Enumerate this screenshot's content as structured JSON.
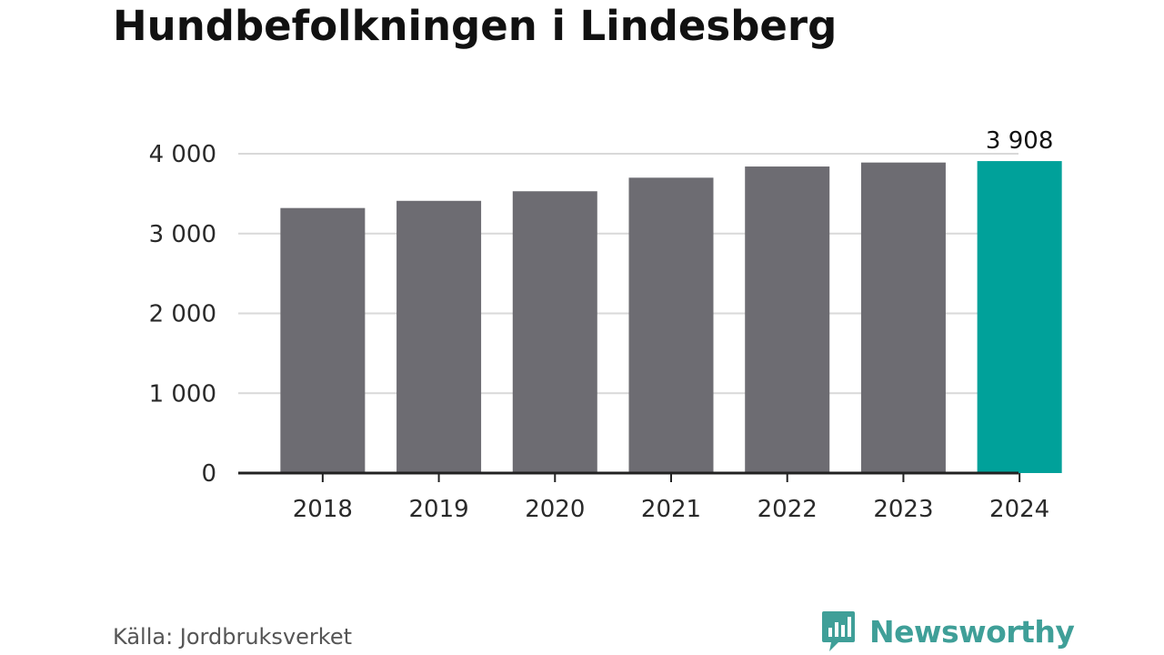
{
  "title": "Hundbefolkningen i Lindesberg",
  "source": "Källa: Jordbruksverket",
  "logo": {
    "text": "Newsworthy",
    "icon": "bar-chart-speech-bubble-icon",
    "color": "#3f9f98"
  },
  "colors": {
    "bar": "#6d6c72",
    "highlight": "#00a19a",
    "grid": "#d9d9d9",
    "axis": "#222222"
  },
  "chart_data": {
    "type": "bar",
    "categories": [
      "2018",
      "2019",
      "2020",
      "2021",
      "2022",
      "2023",
      "2024"
    ],
    "values": [
      3320,
      3410,
      3530,
      3700,
      3840,
      3890,
      3908
    ],
    "highlight_index": 6,
    "data_labels": [
      {
        "index": 6,
        "text": "3 908"
      }
    ],
    "yticks": [
      0,
      1000,
      2000,
      3000,
      4000
    ],
    "ytick_labels": [
      "0",
      "1 000",
      "2 000",
      "3 000",
      "4 000"
    ],
    "ylim": [
      0,
      4000
    ],
    "grid": true,
    "title": "Hundbefolkningen i Lindesberg",
    "xlabel": "",
    "ylabel": ""
  }
}
